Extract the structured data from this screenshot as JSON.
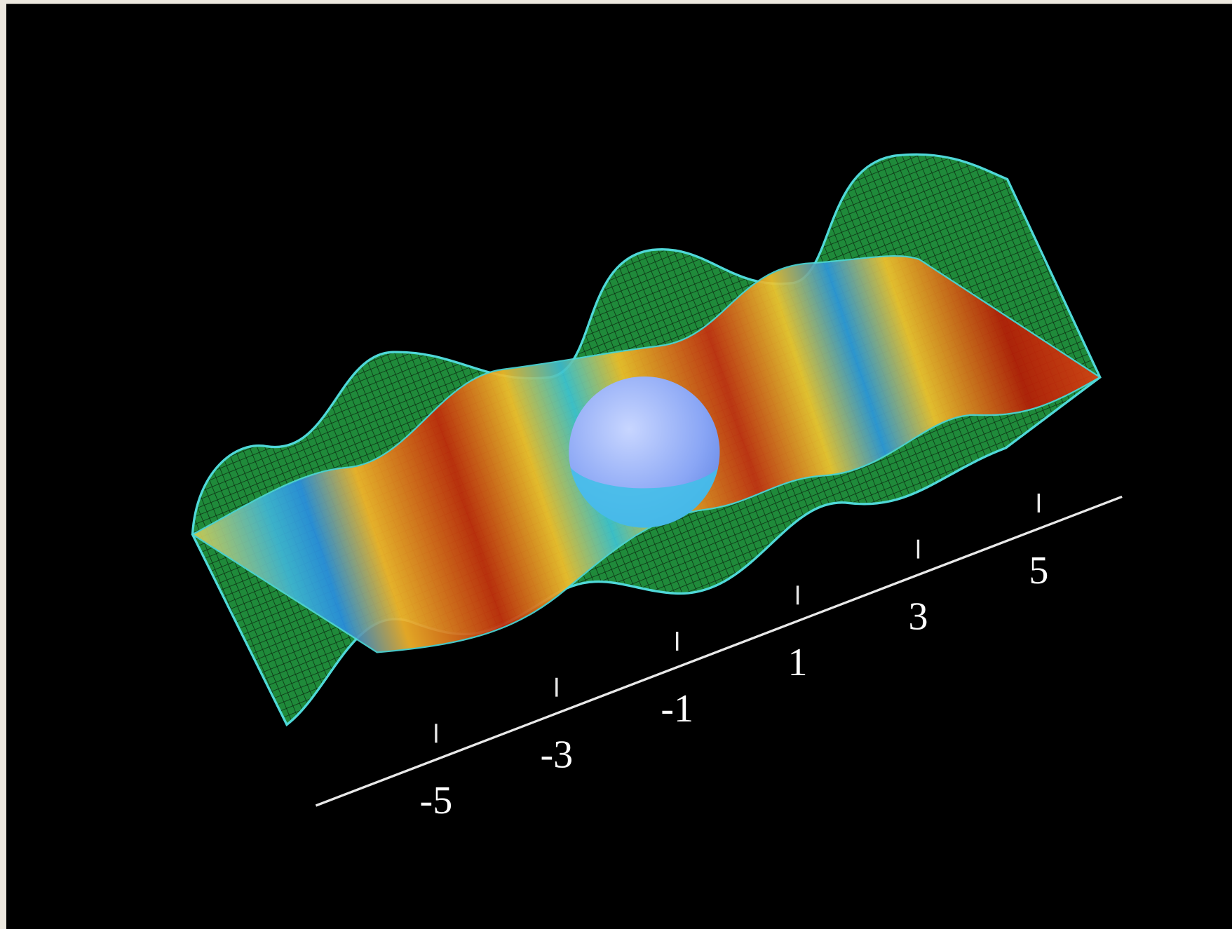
{
  "axis": {
    "ticks": [
      -5,
      -3,
      -1,
      1,
      3,
      5
    ]
  }
}
